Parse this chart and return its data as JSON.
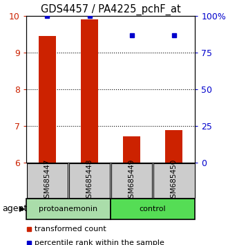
{
  "title": "GDS4457 / PA4225_pchF_at",
  "samples": [
    "GSM685447",
    "GSM685448",
    "GSM685449",
    "GSM685450"
  ],
  "transformed_counts": [
    9.45,
    9.9,
    6.72,
    6.9
  ],
  "percentile_ranks": [
    100,
    100,
    87,
    87
  ],
  "ylim_left": [
    6,
    10
  ],
  "ylim_right": [
    0,
    100
  ],
  "yticks_left": [
    6,
    7,
    8,
    9,
    10
  ],
  "yticks_right": [
    0,
    25,
    50,
    75,
    100
  ],
  "ytick_labels_right": [
    "0",
    "25",
    "50",
    "75",
    "100%"
  ],
  "bar_color": "#cc2200",
  "dot_color": "#0000cc",
  "sample_box_color": "#cccccc",
  "group1_color": "#aaddaa",
  "group2_color": "#55dd55",
  "group1_label": "protoanemonin",
  "group2_label": "control",
  "agent_label": "agent",
  "legend": [
    {
      "color": "#cc2200",
      "label": "transformed count"
    },
    {
      "color": "#0000cc",
      "label": "percentile rank within the sample"
    }
  ],
  "bar_width": 0.4
}
